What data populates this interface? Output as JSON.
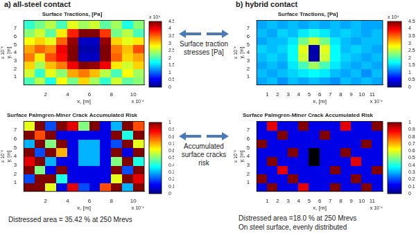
{
  "panel_labels": [
    "a) all-steel contact",
    "b) hybrid contact"
  ],
  "row_labels": [
    "Surface traction stresses [Pa]",
    "Accumulated surface cracks risk"
  ],
  "notes": {
    "a": [
      "Distressed area = 35.42 % at 250 Mrevs"
    ],
    "b": [
      "Distressed area =18.0 % at 250 Mrevs",
      "On steel surface, evenly distributed"
    ]
  },
  "chart_data": [
    {
      "type": "heatmap",
      "title": "Surface Tractions, [Pa]",
      "x_label": "x, [m]",
      "y_label": "y, [m]",
      "x_multiplier": "x 10⁻⁴",
      "y_multiplier": "x 10⁻⁴",
      "x": [
        0.5,
        1.5,
        2.5,
        3.5,
        4.5,
        5.5,
        6.5,
        7.5,
        8.5,
        9.5,
        10.5
      ],
      "y": [
        0.5,
        1.5,
        2.5,
        3.5,
        4.5,
        5.5,
        6.5,
        7.5
      ],
      "cells": [
        [
          2.0,
          2.5,
          1.8,
          2.8,
          2.2,
          3.0,
          2.4,
          1.9,
          2.6,
          2.1,
          2.3
        ],
        [
          2.6,
          1.9,
          2.7,
          2.3,
          3.2,
          3.4,
          3.1,
          2.5,
          2.0,
          2.8,
          2.4
        ],
        [
          3.0,
          2.4,
          3.1,
          3.4,
          4.0,
          4.5,
          4.4,
          4.0,
          2.9,
          2.6,
          3.0
        ],
        [
          3.4,
          2.9,
          3.6,
          3.9,
          4.5,
          0.3,
          0.3,
          4.5,
          3.5,
          3.0,
          3.2
        ],
        [
          3.2,
          3.5,
          3.3,
          4.0,
          4.5,
          0.2,
          0.2,
          4.5,
          3.4,
          3.1,
          3.6
        ],
        [
          2.8,
          3.0,
          2.7,
          3.5,
          4.4,
          0.3,
          0.3,
          4.4,
          3.0,
          2.7,
          2.9
        ],
        [
          2.3,
          2.6,
          2.1,
          2.9,
          3.8,
          4.5,
          4.5,
          3.7,
          2.2,
          2.5,
          2.0
        ],
        [
          1.9,
          2.2,
          2.5,
          2.0,
          2.7,
          2.4,
          2.6,
          2.1,
          2.4,
          1.8,
          2.3
        ]
      ],
      "xlim": [
        0,
        11
      ],
      "ylim": [
        0,
        8
      ],
      "xticks": [
        2,
        4,
        6,
        8,
        10
      ],
      "yticks": [
        1,
        2,
        3,
        4,
        5,
        6,
        7
      ],
      "colorbar": {
        "range": [
          0,
          4.5
        ],
        "ticks": [
          0,
          0.5,
          1,
          1.5,
          2,
          2.5,
          3,
          3.5,
          4,
          4.5
        ],
        "multiplier": "x 10⁹"
      }
    },
    {
      "type": "heatmap",
      "title": "Surface Tractions, [Pa]",
      "x_label": "x, [m]",
      "y_label": "y, [m]",
      "x_multiplier": "x 10⁻⁴",
      "y_multiplier": "x 10⁻⁴",
      "x": [
        0.5,
        1.5,
        2.5,
        3.5,
        4.5,
        5.5,
        6.5,
        7.5,
        8.5,
        9.5,
        10.5,
        11.5
      ],
      "y": [
        0.5,
        1.5,
        2.5,
        3.5,
        4.5,
        5.5,
        6.5,
        7.5
      ],
      "cells": [
        [
          1.3,
          1.4,
          1.2,
          1.4,
          1.3,
          1.4,
          1.3,
          1.2,
          1.4,
          1.3,
          1.4,
          1.3
        ],
        [
          1.4,
          1.3,
          1.4,
          1.5,
          1.6,
          1.7,
          1.6,
          1.4,
          1.3,
          1.4,
          1.2,
          1.4
        ],
        [
          1.3,
          1.4,
          1.3,
          1.6,
          2.0,
          2.4,
          2.0,
          1.6,
          1.4,
          1.3,
          1.4,
          1.3
        ],
        [
          1.4,
          1.5,
          1.4,
          1.7,
          2.6,
          0.2,
          2.6,
          1.7,
          1.5,
          1.4,
          1.3,
          1.4
        ],
        [
          1.5,
          1.4,
          1.5,
          1.7,
          2.7,
          0.2,
          2.7,
          1.7,
          1.4,
          1.5,
          1.4,
          1.3
        ],
        [
          1.3,
          1.4,
          1.4,
          1.6,
          2.2,
          2.6,
          2.2,
          1.6,
          1.4,
          1.3,
          1.4,
          1.4
        ],
        [
          1.4,
          1.3,
          1.5,
          1.4,
          1.6,
          1.8,
          1.6,
          1.4,
          1.5,
          1.4,
          1.3,
          1.4
        ],
        [
          1.3,
          1.4,
          1.3,
          1.4,
          1.3,
          1.4,
          1.3,
          1.4,
          1.3,
          1.4,
          1.3,
          1.3
        ]
      ],
      "xlim": [
        0,
        12
      ],
      "ylim": [
        0,
        8
      ],
      "xticks": [
        1,
        2,
        3,
        4,
        5,
        6,
        7,
        8,
        9,
        10,
        11
      ],
      "yticks": [
        1,
        2,
        3,
        4,
        5,
        6,
        7
      ],
      "colorbar": {
        "range": [
          0,
          4.5
        ],
        "ticks": [
          0,
          0.5,
          1,
          1.5,
          2,
          2.5,
          3,
          3.5,
          4,
          4.5
        ],
        "multiplier": "x 10⁹"
      }
    },
    {
      "type": "heatmap",
      "title": "Surface Palmgren-Miner Crack Accumulated Risk",
      "x_label": "x, [m]",
      "y_label": "y, [m]",
      "x_multiplier": "x 10⁻⁴",
      "y_multiplier": "x 10⁻⁴",
      "x": [
        0.5,
        1.5,
        2.5,
        3.5,
        4.5,
        5.5,
        6.5,
        7.5,
        8.5,
        9.5,
        10.5
      ],
      "y": [
        0.5,
        1.5,
        2.5,
        3.5,
        4.5,
        5.5,
        6.5,
        7.5
      ],
      "cells": [
        [
          1.0,
          1.0,
          0.6,
          0.1,
          0.9,
          0.2,
          0.1,
          0.8,
          1.0,
          0.3,
          1.0
        ],
        [
          0.2,
          1.0,
          1.0,
          0.4,
          0.1,
          0.1,
          0.1,
          0.1,
          0.6,
          1.0,
          0.9
        ],
        [
          1.0,
          0.5,
          0.1,
          1.0,
          0.1,
          0.1,
          0.1,
          0.1,
          1.0,
          0.2,
          1.0
        ],
        [
          0.9,
          1.0,
          0.3,
          0.1,
          0.1,
          0.3,
          0.3,
          0.1,
          0.5,
          1.0,
          0.4
        ],
        [
          1.0,
          0.2,
          1.0,
          0.7,
          0.1,
          0.3,
          0.3,
          0.1,
          1.0,
          0.1,
          1.0
        ],
        [
          0.3,
          1.0,
          0.5,
          1.0,
          0.1,
          0.3,
          0.3,
          0.1,
          0.2,
          1.0,
          0.6
        ],
        [
          1.0,
          0.8,
          1.0,
          0.1,
          0.1,
          0.1,
          0.1,
          0.1,
          1.0,
          0.4,
          1.0
        ],
        [
          0.6,
          1.0,
          0.2,
          1.0,
          0.9,
          0.5,
          1.0,
          0.1,
          0.3,
          1.0,
          0.8
        ]
      ],
      "xlim": [
        0,
        11
      ],
      "ylim": [
        0,
        8
      ],
      "xticks": [
        2,
        4,
        6,
        8,
        10
      ],
      "yticks": [
        1,
        2,
        3,
        4,
        5,
        6,
        7
      ],
      "colorbar": {
        "range": [
          0,
          1
        ],
        "ticks": [
          0,
          0.1,
          0.2,
          0.3,
          0.4,
          0.5,
          0.6,
          0.7,
          0.8,
          0.9,
          1
        ]
      }
    },
    {
      "type": "heatmap",
      "title": "Surface Palmgren-Miner Crack Accumulated Risk",
      "x_label": "x, [m]",
      "y_label": "y, [m]",
      "x_multiplier": "x 10⁻⁴",
      "y_multiplier": "x 10⁻⁴",
      "x": [
        0.5,
        1.5,
        2.5,
        3.5,
        4.5,
        5.5,
        6.5,
        7.5,
        8.5,
        9.5,
        10.5,
        11.5
      ],
      "y": [
        0.5,
        1.5,
        2.5,
        3.5,
        4.5,
        5.5,
        6.5,
        7.5
      ],
      "cells": [
        [
          0.1,
          1.0,
          0.1,
          0.1,
          0.9,
          0.1,
          0.1,
          1.0,
          0.1,
          0.1,
          1.0,
          0.1
        ],
        [
          1.0,
          0.1,
          0.1,
          1.0,
          0.1,
          0.1,
          0.1,
          0.1,
          0.1,
          1.0,
          0.1,
          0.1
        ],
        [
          0.1,
          0.1,
          0.9,
          0.1,
          0.1,
          0.1,
          0.1,
          1.0,
          0.1,
          0.1,
          0.1,
          1.0
        ],
        [
          0.1,
          1.0,
          0.1,
          0.1,
          0.1,
          null,
          0.1,
          0.1,
          0.1,
          0.9,
          0.1,
          0.1
        ],
        [
          0.1,
          0.1,
          0.1,
          1.0,
          0.1,
          null,
          0.1,
          0.1,
          1.0,
          0.1,
          0.1,
          0.1
        ],
        [
          1.0,
          0.1,
          0.1,
          0.1,
          0.1,
          0.1,
          0.1,
          0.1,
          0.1,
          0.1,
          1.0,
          0.1
        ],
        [
          0.1,
          0.1,
          1.0,
          0.1,
          0.1,
          0.1,
          1.0,
          0.1,
          0.1,
          0.1,
          0.1,
          0.1
        ],
        [
          0.1,
          0.9,
          0.1,
          0.1,
          1.0,
          0.1,
          0.1,
          0.1,
          0.9,
          0.1,
          0.1,
          1.0
        ]
      ],
      "xlim": [
        0,
        12
      ],
      "ylim": [
        0,
        8
      ],
      "xticks": [
        1,
        2,
        3,
        4,
        5,
        6,
        7,
        8,
        9,
        10,
        11
      ],
      "yticks": [
        1,
        2,
        3,
        4,
        5,
        6,
        7
      ],
      "colorbar": {
        "range": [
          0,
          1
        ],
        "ticks": [
          0,
          0.1,
          0.2,
          0.3,
          0.4,
          0.5,
          0.6,
          0.7,
          0.8,
          0.9,
          1
        ]
      }
    }
  ]
}
